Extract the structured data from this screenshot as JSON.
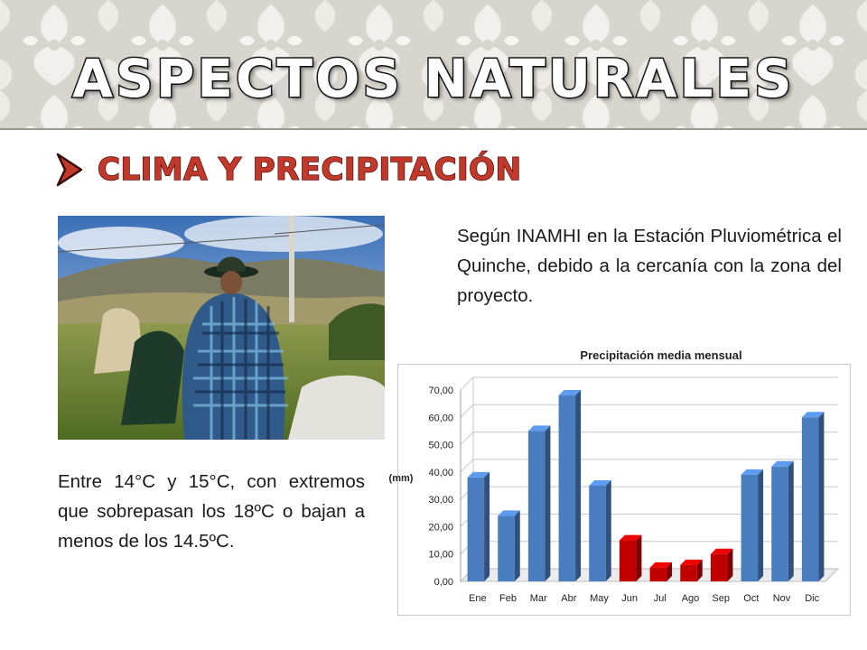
{
  "header": {
    "title": "ASPECTOS NATURALES"
  },
  "section": {
    "heading": "CLIMA Y PRECIPITACIÓN",
    "bullet_icon": "arrow-right-icon"
  },
  "photo": {
    "subject": "photograph"
  },
  "text_right": "Según INAMHI en la Estación Pluviométrica el Quinche, debido a la cercanía con la zona del proyecto.",
  "text_left": "Entre 14°C y 15°C, con extremos que sobrepasan los 18ºC o bajan a menos de los 14.5ºC.",
  "colors": {
    "title_fill": "#ffffff",
    "heading": "#c0392b",
    "bar_blue": "#4a7cc0",
    "bar_red": "#c00000"
  },
  "chart_data": {
    "type": "bar",
    "title": "Precipitación media mensual",
    "ylabel": "(mm)",
    "xlabel": "",
    "categories": [
      "Ene",
      "Feb",
      "Mar",
      "Abr",
      "May",
      "Jun",
      "Jul",
      "Ago",
      "Sep",
      "Oct",
      "Nov",
      "Dic"
    ],
    "values": [
      38,
      24,
      55,
      68,
      35,
      15,
      5,
      6,
      10,
      39,
      42,
      60
    ],
    "bar_colors": [
      "blue",
      "blue",
      "blue",
      "blue",
      "blue",
      "red",
      "red",
      "red",
      "red",
      "blue",
      "blue",
      "blue"
    ],
    "ylim": [
      0,
      70
    ],
    "yticks": [
      "0,00",
      "10,00",
      "20,00",
      "30,00",
      "40,00",
      "50,00",
      "60,00",
      "70,00"
    ],
    "grid": true,
    "style": "3d"
  }
}
